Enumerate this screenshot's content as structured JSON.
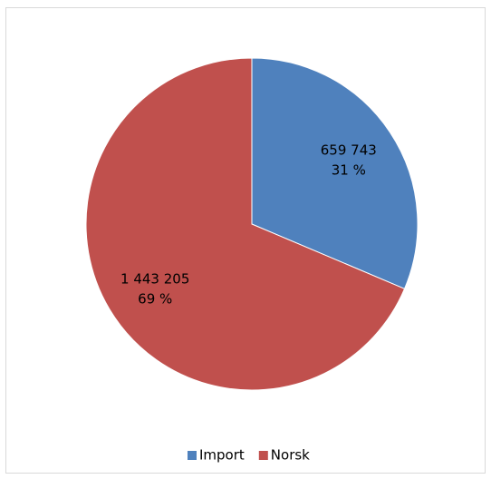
{
  "chart_data": {
    "type": "pie",
    "categories": [
      "Import",
      "Norsk"
    ],
    "values": [
      659743,
      1443205
    ],
    "value_labels": [
      "659 743",
      "1 443 205"
    ],
    "percents": [
      31,
      69
    ],
    "percent_labels": [
      "31 %",
      "69 %"
    ],
    "colors": [
      "#4f81bd",
      "#c0504d"
    ],
    "legend": "bottom"
  }
}
